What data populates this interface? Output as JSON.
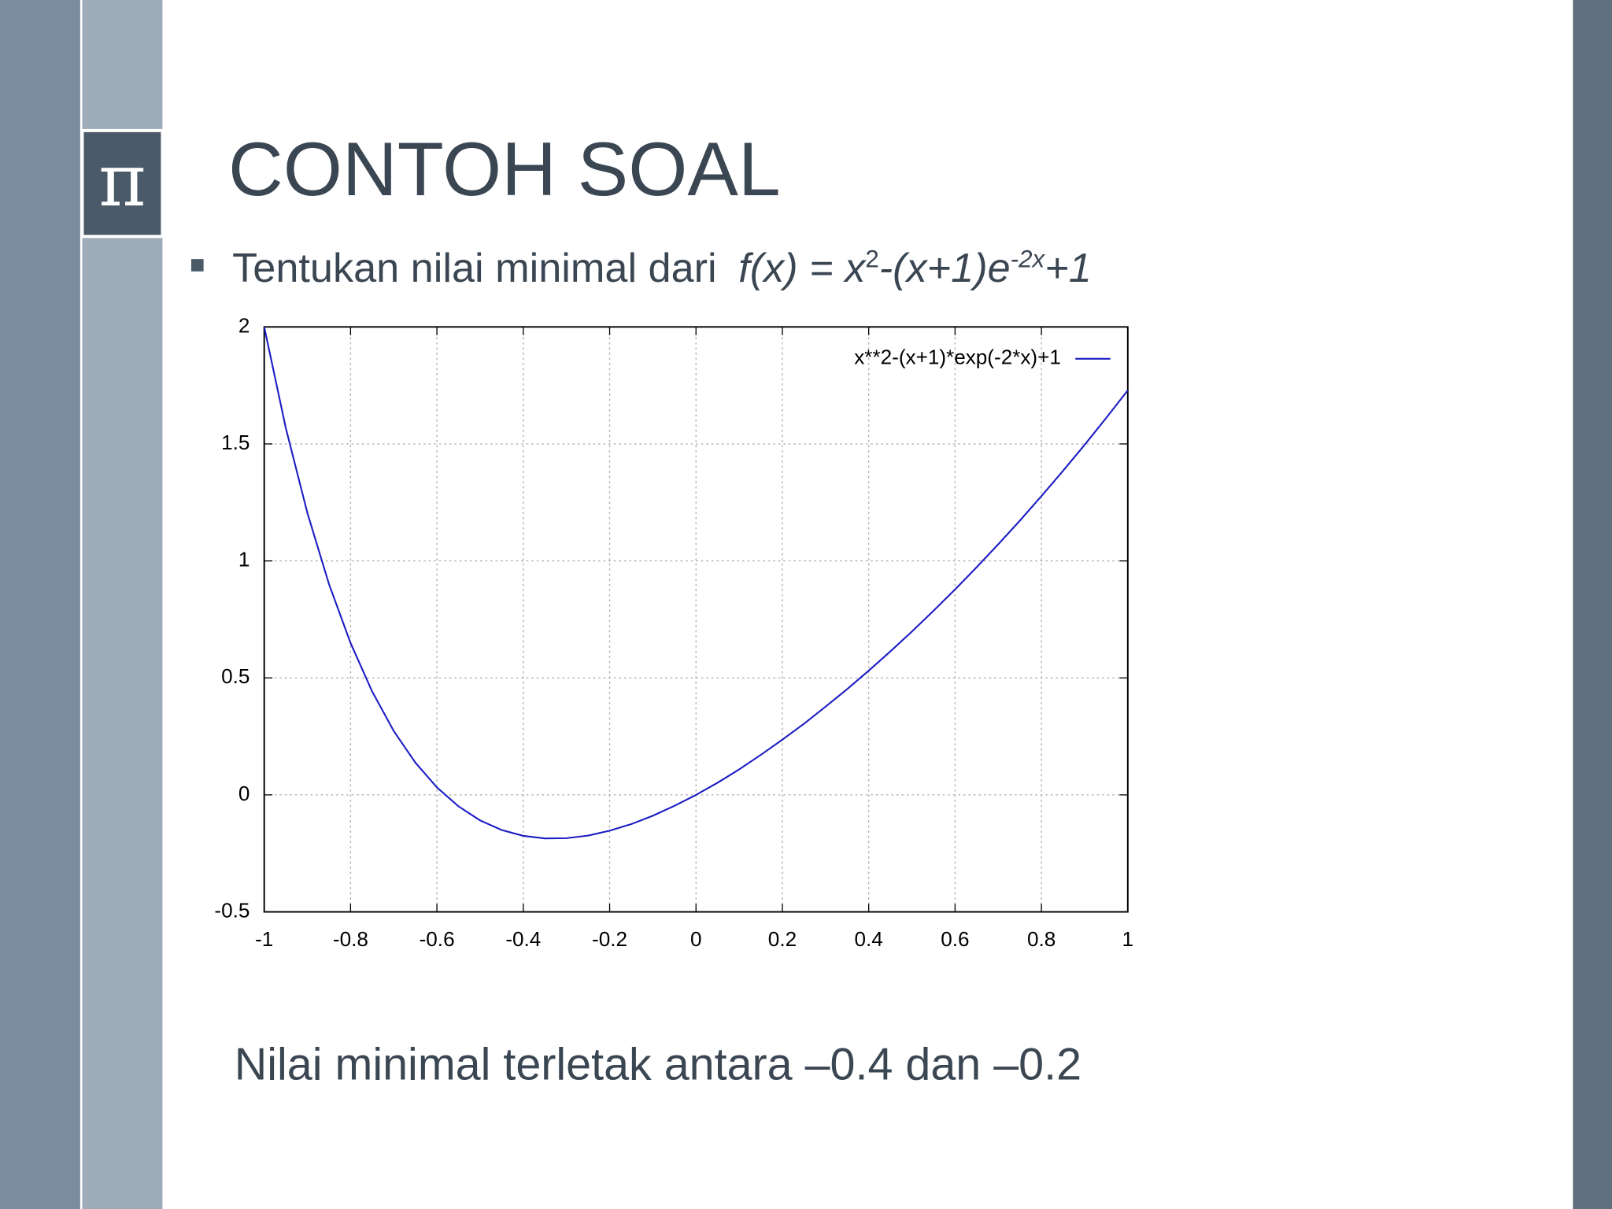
{
  "slide": {
    "logo": "π",
    "title": "CONTOH SOAL",
    "bullet": [
      "Tentukan nilai minimal dari",
      "f(x) = x",
      "2",
      "-(x+1)e",
      "-2x",
      "+1"
    ],
    "note": "Nilai minimal terletak antara –0.4 dan –0.2"
  },
  "chart_data": {
    "type": "line",
    "x": [
      -1,
      -0.95,
      -0.9,
      -0.85,
      -0.8,
      -0.75,
      -0.7,
      -0.65,
      -0.6,
      -0.55,
      -0.5,
      -0.45,
      -0.4,
      -0.35,
      -0.3,
      -0.25,
      -0.2,
      -0.15,
      -0.1,
      -0.05,
      0,
      0.05,
      0.1,
      0.15,
      0.2,
      0.25,
      0.3,
      0.35,
      0.4,
      0.45,
      0.5,
      0.55,
      0.6,
      0.65,
      0.7,
      0.75,
      0.8,
      0.85,
      0.9,
      0.95,
      1
    ],
    "series": [
      {
        "name": "x**2-(x+1)*exp(-2*x)+1",
        "color": "#1c1cc4",
        "values": [
          2,
          1.568,
          1.205,
          0.901,
          0.649,
          0.442,
          0.273,
          0.138,
          0.032,
          -0.049,
          -0.109,
          -0.15,
          -0.175,
          -0.186,
          -0.185,
          -0.174,
          -0.153,
          -0.125,
          -0.089,
          -0.047,
          0,
          0.052,
          0.109,
          0.171,
          0.236,
          0.304,
          0.377,
          0.452,
          0.531,
          0.613,
          0.698,
          0.787,
          0.878,
          0.973,
          1.071,
          1.172,
          1.277,
          1.385,
          1.496,
          1.611,
          1.729
        ]
      }
    ],
    "xlim": [
      -1,
      1
    ],
    "xticks": [
      -1,
      -0.8,
      -0.6,
      -0.4,
      -0.2,
      0,
      0.2,
      0.4,
      0.6,
      0.8,
      1
    ],
    "ylim": [
      -0.5,
      2
    ],
    "yticks": [
      -0.5,
      0,
      0.5,
      1,
      1.5,
      2
    ],
    "grid": true,
    "legend": "upper-right"
  }
}
